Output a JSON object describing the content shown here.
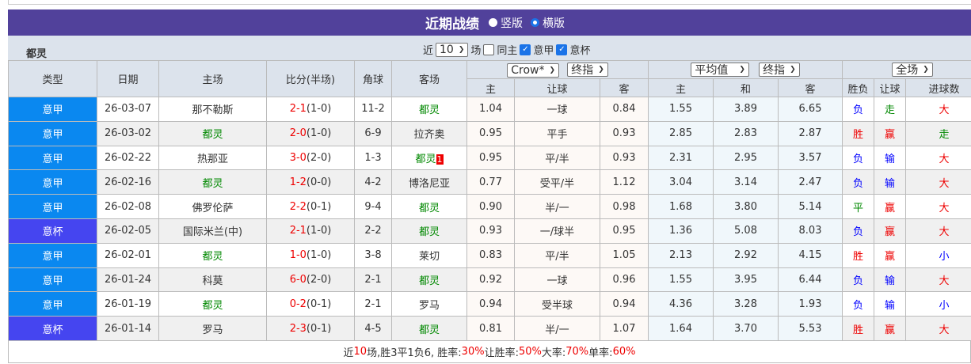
{
  "title": "近期战绩",
  "view_options": [
    {
      "label": "竖版",
      "selected": false
    },
    {
      "label": "横版",
      "selected": true
    }
  ],
  "team": "都灵",
  "filter": {
    "prefix": "近",
    "count": "10",
    "suffix": "场",
    "same_home": {
      "label": "同主",
      "checked": false
    },
    "leagues": [
      {
        "label": "意甲",
        "checked": true
      },
      {
        "label": "意杯",
        "checked": true
      }
    ]
  },
  "selects": {
    "company": "Crow*",
    "odds_type1": "终指",
    "avg": "平均值",
    "odds_type2": "终指",
    "period": "全场"
  },
  "headers": {
    "type": "类型",
    "date": "日期",
    "home": "主场",
    "score": "比分(半场)",
    "corner": "角球",
    "away": "客场",
    "ah_home": "主",
    "ah_line": "让球",
    "ah_away": "客",
    "eu_home": "主",
    "eu_draw": "和",
    "eu_away": "客",
    "wl": "胜负",
    "ah_res": "让球",
    "ou": "进球数"
  },
  "colors": {
    "意甲": "#0a88f0",
    "意杯": "#4545f0",
    "win": "#e00",
    "loss": "#00f",
    "draw": "#080"
  },
  "rows": [
    {
      "type": "意甲",
      "date": "26-03-07",
      "home": "那不勒斯",
      "score": "2-1",
      "half": "(1-0)",
      "corner": "11-2",
      "away": "都灵",
      "ah_h": "1.04",
      "ah_line": "一球",
      "ah_a": "0.84",
      "eu_h": "1.55",
      "eu_d": "3.89",
      "eu_a": "6.65",
      "wl": "负",
      "ah": "走",
      "ou": "大"
    },
    {
      "type": "意甲",
      "date": "26-03-02",
      "home": "都灵",
      "score": "2-0",
      "half": "(1-0)",
      "corner": "6-9",
      "away": "拉齐奥",
      "ah_h": "0.95",
      "ah_line": "平手",
      "ah_a": "0.93",
      "eu_h": "2.85",
      "eu_d": "2.83",
      "eu_a": "2.87",
      "wl": "胜",
      "ah": "赢",
      "ou": "走"
    },
    {
      "type": "意甲",
      "date": "26-02-22",
      "home": "热那亚",
      "score": "3-0",
      "half": "(2-0)",
      "corner": "1-3",
      "away": "都灵",
      "away_badge": "1",
      "ah_h": "0.95",
      "ah_line": "平/半",
      "ah_a": "0.93",
      "eu_h": "2.31",
      "eu_d": "2.95",
      "eu_a": "3.57",
      "wl": "负",
      "ah": "输",
      "ou": "大"
    },
    {
      "type": "意甲",
      "date": "26-02-16",
      "home": "都灵",
      "score": "1-2",
      "half": "(0-0)",
      "corner": "4-2",
      "away": "博洛尼亚",
      "ah_h": "0.77",
      "ah_line": "受平/半",
      "ah_a": "1.12",
      "eu_h": "3.04",
      "eu_d": "3.14",
      "eu_a": "2.47",
      "wl": "负",
      "ah": "输",
      "ou": "大"
    },
    {
      "type": "意甲",
      "date": "26-02-08",
      "home": "佛罗伦萨",
      "score": "2-2",
      "half": "(0-1)",
      "corner": "9-4",
      "away": "都灵",
      "ah_h": "0.90",
      "ah_line": "半/一",
      "ah_a": "0.98",
      "eu_h": "1.68",
      "eu_d": "3.80",
      "eu_a": "5.14",
      "wl": "平",
      "ah": "赢",
      "ou": "大"
    },
    {
      "type": "意杯",
      "date": "26-02-05",
      "home": "国际米兰(中)",
      "score": "2-1",
      "half": "(1-0)",
      "corner": "2-2",
      "away": "都灵",
      "ah_h": "0.93",
      "ah_line": "一/球半",
      "ah_a": "0.95",
      "eu_h": "1.36",
      "eu_d": "5.08",
      "eu_a": "8.03",
      "wl": "负",
      "ah": "赢",
      "ou": "大"
    },
    {
      "type": "意甲",
      "date": "26-02-01",
      "home": "都灵",
      "score": "1-0",
      "half": "(1-0)",
      "corner": "3-8",
      "away": "莱切",
      "ah_h": "0.83",
      "ah_line": "平/半",
      "ah_a": "1.05",
      "eu_h": "2.13",
      "eu_d": "2.92",
      "eu_a": "4.15",
      "wl": "胜",
      "ah": "赢",
      "ou": "小"
    },
    {
      "type": "意甲",
      "date": "26-01-24",
      "home": "科莫",
      "score": "6-0",
      "half": "(2-0)",
      "corner": "2-1",
      "away": "都灵",
      "ah_h": "0.92",
      "ah_line": "一球",
      "ah_a": "0.96",
      "eu_h": "1.55",
      "eu_d": "3.95",
      "eu_a": "6.44",
      "wl": "负",
      "ah": "输",
      "ou": "大"
    },
    {
      "type": "意甲",
      "date": "26-01-19",
      "home": "都灵",
      "score": "0-2",
      "half": "(0-1)",
      "corner": "2-1",
      "away": "罗马",
      "ah_h": "0.94",
      "ah_line": "受半球",
      "ah_a": "0.94",
      "eu_h": "4.36",
      "eu_d": "3.28",
      "eu_a": "1.93",
      "wl": "负",
      "ah": "输",
      "ou": "小"
    },
    {
      "type": "意杯",
      "date": "26-01-14",
      "home": "罗马",
      "score": "2-3",
      "half": "(0-1)",
      "corner": "4-5",
      "away": "都灵",
      "ah_h": "0.81",
      "ah_line": "半/一",
      "ah_a": "1.07",
      "eu_h": "1.64",
      "eu_d": "3.70",
      "eu_a": "5.53",
      "wl": "胜",
      "ah": "赢",
      "ou": "大"
    }
  ],
  "summary": {
    "p1": "近",
    "n": "10",
    "p2": "场,胜3平1负6, 胜率:",
    "win_rate": "30%",
    "p3": " 让胜率:",
    "ah_rate": "50%",
    "p4": " 大率:",
    "over_rate": "70%",
    "p5": " 单率:",
    "odd_rate": "60%"
  }
}
